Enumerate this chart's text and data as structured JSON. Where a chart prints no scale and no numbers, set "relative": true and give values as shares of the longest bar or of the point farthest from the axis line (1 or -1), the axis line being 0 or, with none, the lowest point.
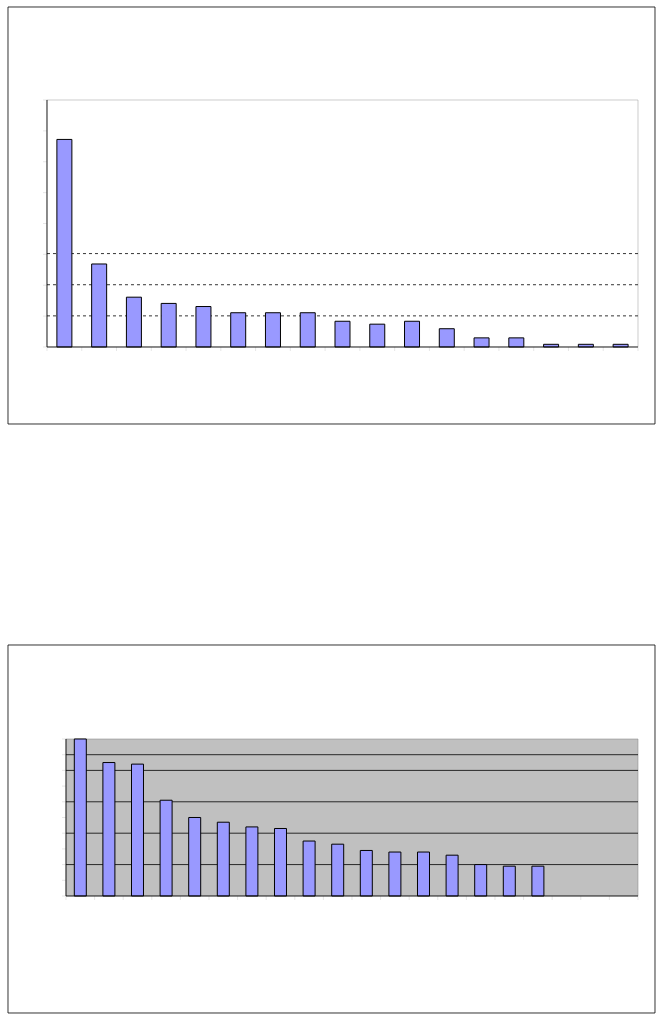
{
  "chart_data": [
    {
      "type": "bar",
      "relative": true,
      "color": "#9999ff",
      "categories": [
        null,
        null,
        null,
        null,
        null,
        null,
        null,
        null,
        null,
        null,
        null,
        null,
        null,
        null,
        null,
        null,
        null
      ],
      "values": [
        1,
        0.4,
        0.24,
        0.21,
        0.195,
        0.165,
        0.165,
        0.165,
        0.124,
        0.11,
        0.124,
        0.088,
        0.044,
        0.044,
        0.013,
        0.013,
        0.013
      ],
      "ref_lines": [
        {
          "axis": "y",
          "value": 0.15,
          "line_style": "dashed"
        },
        {
          "axis": "y",
          "value": 0.3,
          "line_style": "dashed"
        },
        {
          "axis": "y",
          "value": 0.45,
          "line_style": "dashed"
        }
      ]
    },
    {
      "type": "bar",
      "relative": true,
      "color": "#9999ff",
      "categories": [
        null,
        null,
        null,
        null,
        null,
        null,
        null,
        null,
        null,
        null,
        null,
        null,
        null,
        null,
        null,
        null,
        null
      ],
      "values": [
        1,
        0.85,
        0.84,
        0.61,
        0.5,
        0.47,
        0.44,
        0.43,
        0.35,
        0.33,
        0.29,
        0.28,
        0.28,
        0.26,
        0.2,
        0.19,
        0.19
      ],
      "ref_lines": [
        {
          "axis": "y",
          "value": 0.2,
          "line_style": "solid"
        },
        {
          "axis": "y",
          "value": 0.4,
          "line_style": "solid"
        },
        {
          "axis": "y",
          "value": 0.6,
          "line_style": "solid"
        },
        {
          "axis": "y",
          "value": 0.8,
          "line_style": "solid"
        },
        {
          "axis": "y",
          "value": 0.9,
          "line_style": "solid"
        }
      ]
    }
  ]
}
